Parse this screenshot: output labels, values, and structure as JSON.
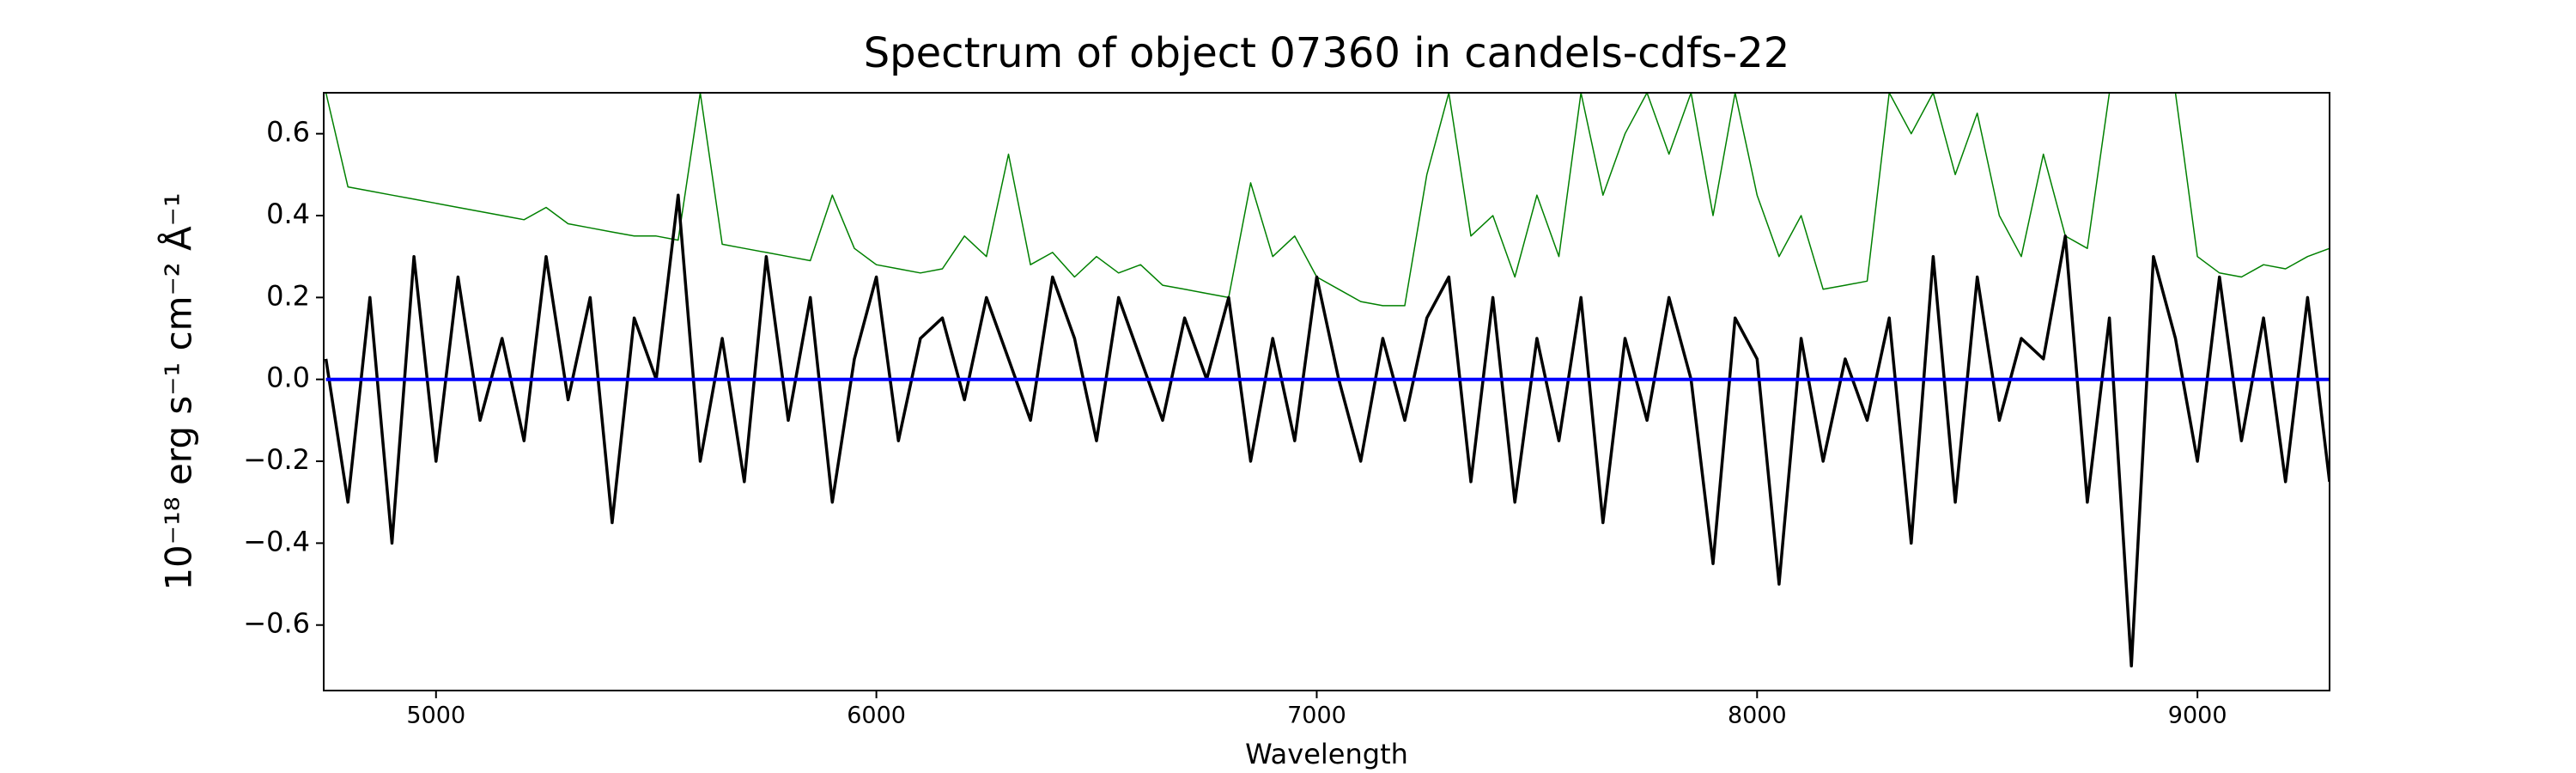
{
  "chart_data": {
    "type": "line",
    "title": "Spectrum of object 07360 in candels-cdfs-22",
    "xlabel": "Wavelength",
    "ylabel": "10⁻¹⁸ erg s⁻¹ cm⁻² Å⁻¹",
    "x": [
      4750,
      4800,
      4850,
      4900,
      4950,
      5000,
      5050,
      5100,
      5150,
      5200,
      5250,
      5300,
      5350,
      5400,
      5450,
      5500,
      5550,
      5600,
      5650,
      5700,
      5750,
      5800,
      5850,
      5900,
      5950,
      6000,
      6050,
      6100,
      6150,
      6200,
      6250,
      6300,
      6350,
      6400,
      6450,
      6500,
      6550,
      6600,
      6650,
      6700,
      6750,
      6800,
      6850,
      6900,
      6950,
      7000,
      7050,
      7100,
      7150,
      7200,
      7250,
      7300,
      7350,
      7400,
      7450,
      7500,
      7550,
      7600,
      7650,
      7700,
      7750,
      7800,
      7850,
      7900,
      7950,
      8000,
      8050,
      8100,
      8150,
      8200,
      8250,
      8300,
      8350,
      8400,
      8450,
      8500,
      8550,
      8600,
      8650,
      8700,
      8750,
      8800,
      8850,
      8900,
      8950,
      9000,
      9050,
      9100,
      9150,
      9200,
      9250,
      9300
    ],
    "series": [
      {
        "color": "#008000",
        "width": 1.5,
        "values": [
          0.7,
          0.47,
          0.46,
          0.45,
          0.44,
          0.43,
          0.42,
          0.41,
          0.4,
          0.39,
          0.42,
          0.38,
          0.37,
          0.36,
          0.35,
          0.35,
          0.34,
          0.7,
          0.33,
          0.32,
          0.31,
          0.3,
          0.29,
          0.45,
          0.32,
          0.28,
          0.27,
          0.26,
          0.27,
          0.35,
          0.3,
          0.55,
          0.28,
          0.31,
          0.25,
          0.3,
          0.26,
          0.28,
          0.23,
          0.22,
          0.21,
          0.2,
          0.48,
          0.3,
          0.35,
          0.25,
          0.22,
          0.19,
          0.18,
          0.18,
          0.5,
          0.7,
          0.35,
          0.4,
          0.25,
          0.45,
          0.3,
          0.7,
          0.45,
          0.6,
          0.7,
          0.55,
          0.7,
          0.4,
          0.7,
          0.45,
          0.3,
          0.4,
          0.22,
          0.23,
          0.24,
          0.7,
          0.6,
          0.7,
          0.5,
          0.65,
          0.4,
          0.3,
          0.55,
          0.35,
          0.32,
          0.7,
          0.7,
          0.7,
          0.7,
          0.3,
          0.26,
          0.25,
          0.28,
          0.27,
          0.3,
          0.32
        ]
      },
      {
        "color": "#000000",
        "width": 3.5,
        "values": [
          0.05,
          -0.3,
          0.2,
          -0.4,
          0.3,
          -0.2,
          0.25,
          -0.1,
          0.1,
          -0.15,
          0.3,
          -0.05,
          0.2,
          -0.35,
          0.15,
          0.0,
          0.45,
          -0.2,
          0.1,
          -0.25,
          0.3,
          -0.1,
          0.2,
          -0.3,
          0.05,
          0.25,
          -0.15,
          0.1,
          0.15,
          -0.05,
          0.2,
          0.05,
          -0.1,
          0.25,
          0.1,
          -0.15,
          0.2,
          0.05,
          -0.1,
          0.15,
          0.0,
          0.2,
          -0.2,
          0.1,
          -0.15,
          0.25,
          0.0,
          -0.2,
          0.1,
          -0.1,
          0.15,
          0.25,
          -0.25,
          0.2,
          -0.3,
          0.1,
          -0.15,
          0.2,
          -0.35,
          0.1,
          -0.1,
          0.2,
          0.0,
          -0.45,
          0.15,
          0.05,
          -0.5,
          0.1,
          -0.2,
          0.05,
          -0.1,
          0.15,
          -0.4,
          0.3,
          -0.3,
          0.25,
          -0.1,
          0.1,
          0.05,
          0.35,
          -0.3,
          0.15,
          -0.7,
          0.3,
          0.1,
          -0.2,
          0.25,
          -0.15,
          0.15,
          -0.25,
          0.2,
          -0.25
        ]
      },
      {
        "color": "#0000ff",
        "width": 4,
        "values": [
          0,
          0,
          0,
          0,
          0,
          0,
          0,
          0,
          0,
          0,
          0,
          0,
          0,
          0,
          0,
          0,
          0,
          0,
          0,
          0,
          0,
          0,
          0,
          0,
          0,
          0,
          0,
          0,
          0,
          0,
          0,
          0,
          0,
          0,
          0,
          0,
          0,
          0,
          0,
          0,
          0,
          0,
          0,
          0,
          0,
          0,
          0,
          0,
          0,
          0,
          0,
          0,
          0,
          0,
          0,
          0,
          0,
          0,
          0,
          0,
          0,
          0,
          0,
          0,
          0,
          0,
          0,
          0,
          0,
          0,
          0,
          0,
          0,
          0,
          0,
          0,
          0,
          0,
          0,
          0,
          0,
          0,
          0,
          0,
          0,
          0,
          0,
          0,
          0,
          0,
          0,
          0
        ]
      }
    ],
    "xlim": [
      4745,
      9300
    ],
    "xticks": [
      5000,
      6000,
      7000,
      8000,
      9000
    ],
    "ylim": [
      -0.76,
      0.7
    ],
    "yticks": [
      {
        "value": -0.6,
        "label": "−0.6"
      },
      {
        "value": -0.4,
        "label": "−0.4"
      },
      {
        "value": -0.2,
        "label": "−0.2"
      },
      {
        "value": 0,
        "label": "0.0"
      },
      0.2,
      0.4,
      0.6
    ],
    "grid": false
  }
}
